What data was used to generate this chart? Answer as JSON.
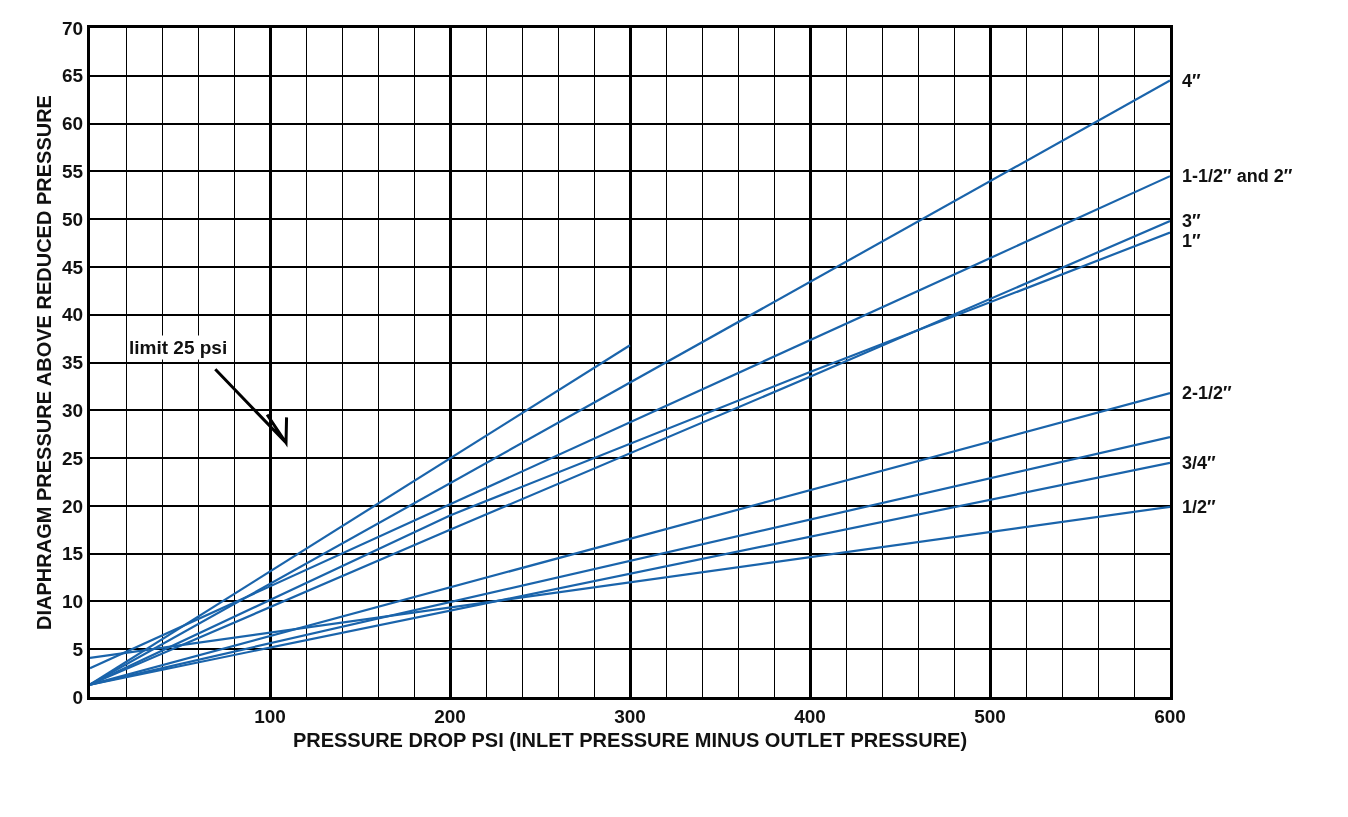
{
  "chart_data": {
    "type": "line",
    "xlabel": "PRESSURE DROP PSI (INLET PRESSURE MINUS OUTLET PRESSURE)",
    "ylabel": "DIAPHRAGM PRESSURE ABOVE REDUCED PRESSURE",
    "series": [
      {
        "name": "4″",
        "color": "#1a64ab",
        "x": [
          0,
          600
        ],
        "values": [
          1.3,
          64.5
        ]
      },
      {
        "color": "#1a64ab",
        "x": [
          0,
          300
        ],
        "values": [
          1.3,
          36.8
        ]
      },
      {
        "name": "1-1/2″ and 2″",
        "color": "#1a64ab",
        "x": [
          0,
          600
        ],
        "values": [
          3.0,
          54.5
        ]
      },
      {
        "name": "3″",
        "color": "#1a64ab",
        "x": [
          0,
          200,
          400,
          600
        ],
        "values": [
          1.3,
          17.5,
          33.5,
          49.8
        ]
      },
      {
        "name": "1″",
        "color": "#1a64ab",
        "x": [
          0,
          200,
          400,
          600
        ],
        "values": [
          1.3,
          19,
          34,
          48.6
        ]
      },
      {
        "name": "2-1/2″",
        "color": "#1a64ab",
        "x": [
          0,
          600
        ],
        "values": [
          1.3,
          31.8
        ]
      },
      {
        "color": "#1a64ab",
        "x": [
          0,
          600
        ],
        "values": [
          1.3,
          27.2
        ]
      },
      {
        "name": "3/4″",
        "color": "#1a64ab",
        "x": [
          0,
          600
        ],
        "values": [
          1.3,
          24.5
        ]
      },
      {
        "name": "1/2″",
        "color": "#1a64ab",
        "x": [
          0,
          600
        ],
        "values": [
          4.1,
          19.9
        ]
      }
    ],
    "annotations": [
      "limit 25 psi"
    ],
    "xlim": [
      0,
      600
    ],
    "ylim": [
      0,
      70
    ],
    "xticks": [
      {
        "value": 20,
        "label": null
      },
      {
        "value": 40,
        "label": null
      },
      {
        "value": 60,
        "label": null
      },
      {
        "value": 80,
        "label": null
      },
      100,
      {
        "value": 120,
        "label": null
      },
      {
        "value": 140,
        "label": null
      },
      {
        "value": 160,
        "label": null
      },
      {
        "value": 180,
        "label": null
      },
      200,
      {
        "value": 220,
        "label": null
      },
      {
        "value": 240,
        "label": null
      },
      {
        "value": 260,
        "label": null
      },
      {
        "value": 280,
        "label": null
      },
      300,
      {
        "value": 320,
        "label": null
      },
      {
        "value": 340,
        "label": null
      },
      {
        "value": 360,
        "label": null
      },
      {
        "value": 380,
        "label": null
      },
      400,
      {
        "value": 420,
        "label": null
      },
      {
        "value": 440,
        "label": null
      },
      {
        "value": 460,
        "label": null
      },
      {
        "value": 480,
        "label": null
      },
      500,
      {
        "value": 520,
        "label": null
      },
      {
        "value": 540,
        "label": null
      },
      {
        "value": 560,
        "label": null
      },
      {
        "value": 580,
        "label": null
      },
      600
    ],
    "yticks": [
      0,
      5,
      10,
      15,
      20,
      25,
      30,
      35,
      40,
      45,
      50,
      55,
      60,
      65,
      70
    ],
    "grid": true,
    "legend": false,
    "marker": "none",
    "line_style": "solid"
  }
}
